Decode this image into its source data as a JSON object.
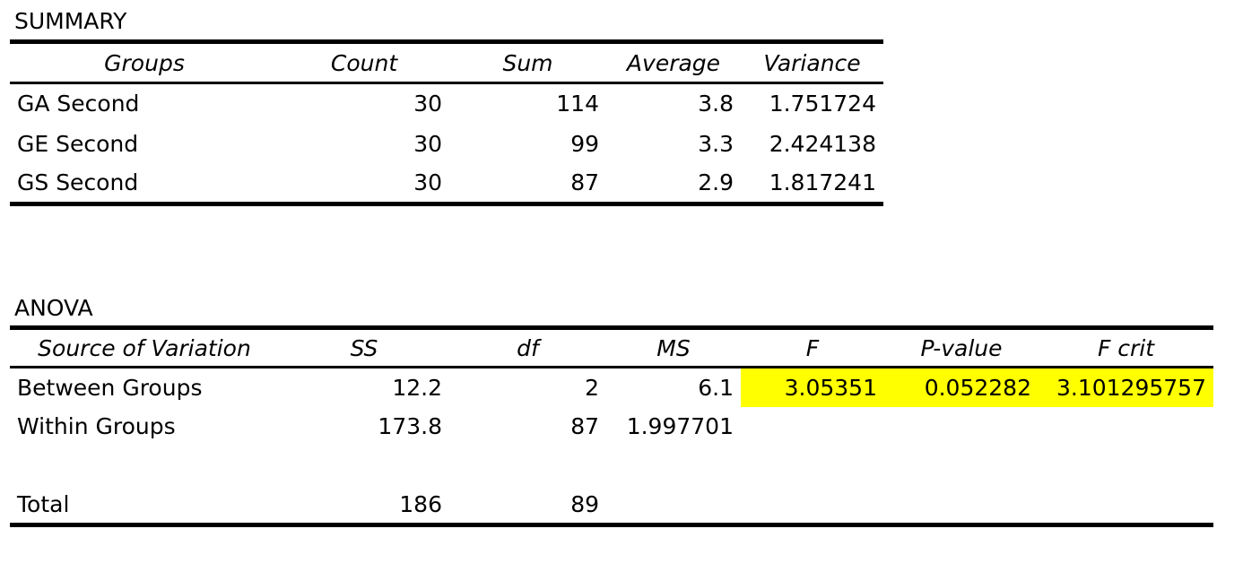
{
  "summary": {
    "label": "SUMMARY",
    "headers": [
      "Groups",
      "Count",
      "Sum",
      "Average",
      "Variance"
    ],
    "rows": [
      [
        "GA Second",
        "30",
        "114",
        "3.8",
        "1.751724"
      ],
      [
        "GE Second",
        "30",
        "99",
        "3.3",
        "2.424138"
      ],
      [
        "GS Second",
        "30",
        "87",
        "2.9",
        "1.817241"
      ]
    ]
  },
  "anova": {
    "label": "ANOVA",
    "headers": [
      "Source of Variation",
      "SS",
      "df",
      "MS",
      "F",
      "P-value",
      "F crit"
    ],
    "rows": [
      [
        "Between Groups",
        "12.2",
        "2",
        "6.1",
        "3.05351",
        "0.052282",
        "3.101295757"
      ],
      [
        "Within Groups",
        "173.8",
        "87",
        "1.997701",
        "",
        "",
        ""
      ],
      [
        "",
        "",
        "",
        "",
        "",
        "",
        ""
      ],
      [
        "Total",
        "186",
        "89",
        "",
        "",
        "",
        ""
      ]
    ],
    "highlight_color": "#ffff00"
  }
}
